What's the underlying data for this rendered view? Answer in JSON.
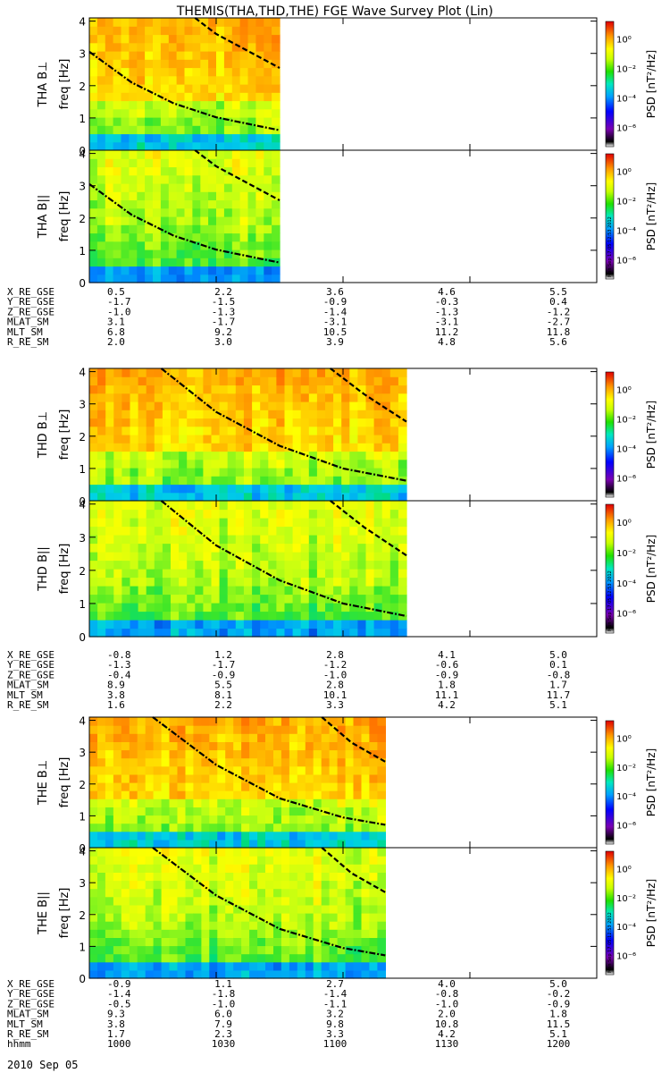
{
  "title": "THEMIS(THA,THD,THE) FGE Wave Survey Plot (Lin)",
  "colorbar": {
    "label": "PSD [nT²/Hz]",
    "ticks": [
      "10⁰",
      "10⁻²",
      "10⁻⁴",
      "10⁻⁶"
    ],
    "stamp": "Mon Sep 17 05:12:53 2012"
  },
  "freq_axis_label": "freq [Hz]",
  "panels": [
    {
      "probe": "THA",
      "label": "THA B⊥"
    },
    {
      "probe": "THA",
      "label": "THA B||"
    },
    {
      "probe": "THD",
      "label": "THD B⊥"
    },
    {
      "probe": "THD",
      "label": "THD B||"
    },
    {
      "probe": "THE",
      "label": "THE B⊥"
    },
    {
      "probe": "THE",
      "label": "THE B||"
    }
  ],
  "orbit_tables": [
    {
      "probe": "THA",
      "rows": [
        {
          "name": "X_RE_GSE",
          "values": [
            "0.5",
            "2.2",
            "3.6",
            "4.6",
            "5.5"
          ]
        },
        {
          "name": "Y_RE_GSE",
          "values": [
            "-1.7",
            "-1.5",
            "-0.9",
            "-0.3",
            "0.4"
          ]
        },
        {
          "name": "Z_RE_GSE",
          "values": [
            "-1.0",
            "-1.3",
            "-1.4",
            "-1.3",
            "-1.2"
          ]
        },
        {
          "name": "MLAT_SM",
          "values": [
            "3.1",
            "-1.7",
            "-3.1",
            "-3.1",
            "-2.7"
          ]
        },
        {
          "name": "MLT_SM",
          "values": [
            "6.8",
            "9.2",
            "10.5",
            "11.2",
            "11.8"
          ]
        },
        {
          "name": "R_RE_SM",
          "values": [
            "2.0",
            "3.0",
            "3.9",
            "4.8",
            "5.6"
          ]
        }
      ]
    },
    {
      "probe": "THD",
      "rows": [
        {
          "name": "X_RE_GSE",
          "values": [
            "-0.8",
            "1.2",
            "2.8",
            "4.1",
            "5.0"
          ]
        },
        {
          "name": "Y_RE_GSE",
          "values": [
            "-1.3",
            "-1.7",
            "-1.2",
            "-0.6",
            "0.1"
          ]
        },
        {
          "name": "Z_RE_GSE",
          "values": [
            "-0.4",
            "-0.9",
            "-1.0",
            "-0.9",
            "-0.8"
          ]
        },
        {
          "name": "MLAT_SM",
          "values": [
            "8.9",
            "5.5",
            "2.8",
            "1.8",
            "1.7"
          ]
        },
        {
          "name": "MLT_SM",
          "values": [
            "3.8",
            "8.1",
            "10.1",
            "11.1",
            "11.7"
          ]
        },
        {
          "name": "R_RE_SM",
          "values": [
            "1.6",
            "2.2",
            "3.3",
            "4.2",
            "5.1"
          ]
        }
      ]
    },
    {
      "probe": "THE",
      "rows": [
        {
          "name": "X_RE_GSE",
          "values": [
            "-0.9",
            "1.1",
            "2.7",
            "4.0",
            "5.0"
          ]
        },
        {
          "name": "Y_RE_GSE",
          "values": [
            "-1.4",
            "-1.8",
            "-1.4",
            "-0.8",
            "-0.2"
          ]
        },
        {
          "name": "Z_RE_GSE",
          "values": [
            "-0.5",
            "-1.0",
            "-1.1",
            "-1.0",
            "-0.9"
          ]
        },
        {
          "name": "MLAT_SM",
          "values": [
            "9.3",
            "6.0",
            "3.2",
            "2.0",
            "1.8"
          ]
        },
        {
          "name": "MLT_SM",
          "values": [
            "3.8",
            "7.9",
            "9.8",
            "10.8",
            "11.5"
          ]
        },
        {
          "name": "R_RE_SM",
          "values": [
            "1.7",
            "2.3",
            "3.3",
            "4.2",
            "5.1"
          ]
        },
        {
          "name": "hhmm",
          "values": [
            "1000",
            "1030",
            "1100",
            "1130",
            "1200"
          ]
        }
      ]
    }
  ],
  "date_label": "2010 Sep 05",
  "chart_data": {
    "type": "heatmap",
    "title": "THEMIS(THA,THD,THE) FGE Wave Survey Plot (Lin)",
    "xlabel": "hhmm",
    "ylabel": "freq [Hz]",
    "x_ticks": [
      "1000",
      "1030",
      "1100",
      "1130",
      "1200"
    ],
    "x_range_minutes": [
      0,
      120
    ],
    "y_ticks": [
      0,
      1,
      2,
      3,
      4
    ],
    "ylim": [
      0,
      4.1
    ],
    "color_scale": {
      "type": "log",
      "min": 1e-07,
      "max": 10,
      "label": "PSD [nT²/Hz]"
    },
    "probes": [
      {
        "name": "THA",
        "data_end_minutes": 45,
        "solid_curve": [
          [
            0,
            3.05
          ],
          [
            10,
            2.1
          ],
          [
            20,
            1.45
          ],
          [
            30,
            1.02
          ],
          [
            40,
            0.75
          ],
          [
            45,
            0.62
          ]
        ],
        "dashed_curve": [
          [
            25,
            4.1
          ],
          [
            30,
            3.6
          ],
          [
            40,
            2.9
          ],
          [
            45,
            2.55
          ]
        ]
      },
      {
        "name": "THD",
        "data_end_minutes": 75,
        "solid_curve": [
          [
            17,
            4.1
          ],
          [
            30,
            2.75
          ],
          [
            45,
            1.7
          ],
          [
            60,
            1.0
          ],
          [
            75,
            0.62
          ]
        ],
        "dashed_curve": [
          [
            57,
            4.1
          ],
          [
            65,
            3.3
          ],
          [
            75,
            2.45
          ]
        ]
      },
      {
        "name": "THE",
        "data_end_minutes": 70,
        "solid_curve": [
          [
            15,
            4.1
          ],
          [
            30,
            2.6
          ],
          [
            45,
            1.55
          ],
          [
            60,
            0.95
          ],
          [
            70,
            0.72
          ]
        ],
        "dashed_curve": [
          [
            55,
            4.1
          ],
          [
            62,
            3.3
          ],
          [
            70,
            2.7
          ]
        ]
      }
    ]
  }
}
